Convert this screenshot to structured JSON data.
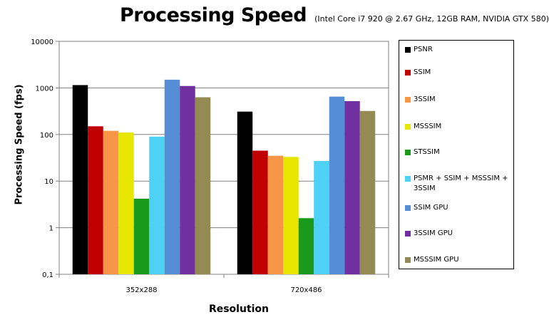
{
  "chart_data": {
    "type": "bar",
    "title": "Processing Speed",
    "subtitle": "(Intel Core i7 920 @ 2.67 GHz, 12GB RAM, NVIDIA GTX 580)",
    "xlabel": "Resolution",
    "ylabel": "Processing Speed (fps)",
    "yscale": "log",
    "ylim": [
      0.1,
      10000
    ],
    "yticks": [
      0.1,
      1,
      10,
      100,
      1000,
      10000
    ],
    "ytick_labels": [
      "0,1",
      "1",
      "10",
      "100",
      "1000",
      "10000"
    ],
    "categories": [
      "352x288",
      "720x486"
    ],
    "grid": true,
    "legend_position": "right",
    "series": [
      {
        "name": "PSNR",
        "color": "#000000",
        "values": [
          1150,
          310
        ]
      },
      {
        "name": "SSIM",
        "color": "#c00000",
        "values": [
          150,
          45
        ]
      },
      {
        "name": "3SSIM",
        "color": "#f79646",
        "values": [
          120,
          35
        ]
      },
      {
        "name": "MSSSIM",
        "color": "#e6e600",
        "values": [
          110,
          33
        ]
      },
      {
        "name": "STSSIM",
        "color": "#1a9a1a",
        "values": [
          4.2,
          1.6
        ]
      },
      {
        "name": "PSMR + SSIM + MSSSIM + 3SSIM",
        "color": "#4dd2f5",
        "values": [
          90,
          27
        ]
      },
      {
        "name": "SSIM GPU",
        "color": "#558ed5",
        "values": [
          1500,
          650
        ]
      },
      {
        "name": "3SSIM GPU",
        "color": "#7030a0",
        "values": [
          1100,
          520
        ]
      },
      {
        "name": "MSSSIM GPU",
        "color": "#948a54",
        "values": [
          630,
          320
        ]
      }
    ]
  }
}
